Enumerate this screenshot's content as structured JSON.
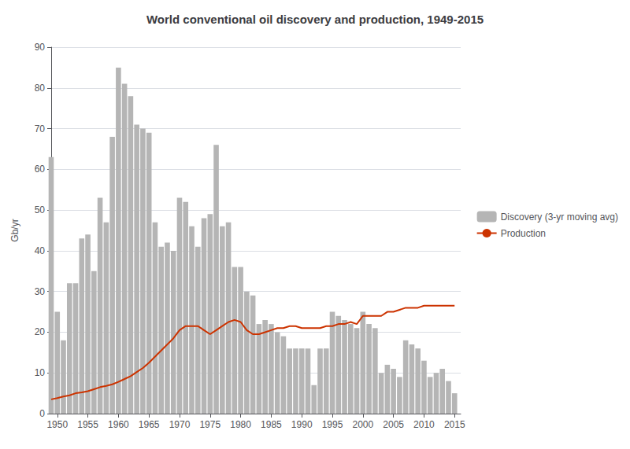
{
  "chart_data": {
    "type": "bar",
    "title": "World conventional oil discovery and production, 1949-2015",
    "ylabel": "Gb/yr",
    "x": [
      1949,
      1950,
      1951,
      1952,
      1953,
      1954,
      1955,
      1956,
      1957,
      1958,
      1959,
      1960,
      1961,
      1962,
      1963,
      1964,
      1965,
      1966,
      1967,
      1968,
      1969,
      1970,
      1971,
      1972,
      1973,
      1974,
      1975,
      1976,
      1977,
      1978,
      1979,
      1980,
      1981,
      1982,
      1983,
      1984,
      1985,
      1986,
      1987,
      1988,
      1989,
      1990,
      1991,
      1992,
      1993,
      1994,
      1995,
      1996,
      1997,
      1998,
      1999,
      2000,
      2001,
      2002,
      2003,
      2004,
      2005,
      2006,
      2007,
      2008,
      2009,
      2010,
      2011,
      2012,
      2013,
      2014,
      2015
    ],
    "series": [
      {
        "name": "Discovery (3-yr moving avg)",
        "type": "bar",
        "color": "#b5b5b5",
        "values": [
          63,
          25,
          18,
          32,
          32,
          43,
          44,
          35,
          53,
          47,
          68,
          85,
          81,
          78,
          71,
          70,
          69,
          47,
          41,
          42,
          40,
          53,
          52,
          46,
          41,
          48,
          49,
          66,
          46,
          47,
          36,
          36,
          30,
          29,
          22,
          23,
          22,
          20,
          19,
          16,
          16,
          16,
          16,
          7,
          16,
          16,
          25,
          24,
          23,
          22,
          21,
          25,
          22,
          21,
          10,
          12,
          11,
          9,
          18,
          17,
          16,
          13,
          9,
          10,
          11,
          8,
          5
        ]
      },
      {
        "name": "Production",
        "type": "line",
        "color": "#cc3300",
        "values": [
          3.5,
          3.8,
          4.2,
          4.5,
          5.0,
          5.2,
          5.5,
          6.0,
          6.5,
          6.8,
          7.2,
          7.8,
          8.5,
          9.2,
          10.2,
          11.2,
          12.5,
          14.0,
          15.5,
          17.0,
          18.5,
          20.5,
          21.5,
          21.5,
          21.5,
          20.5,
          19.5,
          20.5,
          21.5,
          22.5,
          23.0,
          22.5,
          20.5,
          19.5,
          19.5,
          20.0,
          20.5,
          21.0,
          21.0,
          21.5,
          21.5,
          21.0,
          21.0,
          21.0,
          21.0,
          21.5,
          21.5,
          22.0,
          22.0,
          22.5,
          22.0,
          24.0,
          24.0,
          24.0,
          24.0,
          25.0,
          25.0,
          25.5,
          26.0,
          26.0,
          26.0,
          26.5,
          26.5,
          26.5,
          26.5,
          26.5,
          26.5
        ]
      }
    ],
    "xlim": [
      1949,
      2016
    ],
    "xticks": [
      1950,
      1955,
      1960,
      1965,
      1970,
      1975,
      1980,
      1985,
      1990,
      1995,
      2000,
      2005,
      2010,
      2015
    ],
    "ylim": [
      0,
      90
    ],
    "yticks": [
      0,
      10,
      20,
      30,
      40,
      50,
      60,
      70,
      80,
      90
    ],
    "grid": true,
    "legend": "right"
  }
}
